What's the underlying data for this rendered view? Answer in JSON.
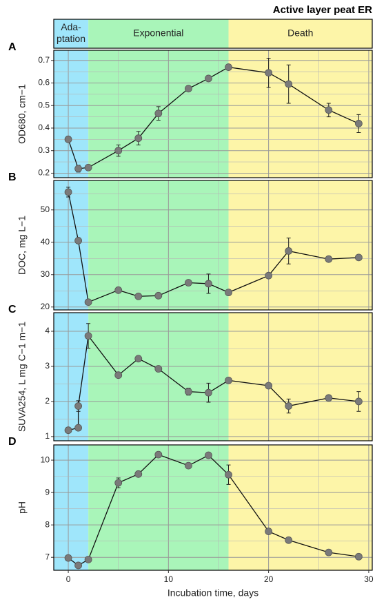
{
  "title": "Active layer peat ER",
  "x_axis": {
    "label": "Incubation time, days",
    "xlim": [
      -1.45,
      30.35
    ],
    "xticks": [
      0,
      10,
      20,
      30
    ],
    "xminor": [
      5,
      15,
      25
    ]
  },
  "phases": [
    {
      "lines": [
        "Ada-",
        "ptation"
      ],
      "end": 2,
      "color": "#9fe6fb"
    },
    {
      "lines": [
        "Exponential"
      ],
      "end": 16,
      "color": "#a9f5b9"
    },
    {
      "lines": [
        "Death"
      ],
      "end": 30.35,
      "color": "#fdf5a8"
    }
  ],
  "chart_data": [
    {
      "type": "line",
      "panel": "A",
      "y_label": "OD680, cm−1",
      "x": [
        0,
        1,
        2,
        5,
        7,
        9,
        12,
        14,
        16,
        20,
        22,
        26,
        29
      ],
      "values": [
        0.35,
        0.22,
        0.225,
        0.3,
        0.355,
        0.465,
        0.575,
        0.62,
        0.67,
        0.645,
        0.595,
        0.48,
        0.42
      ],
      "errors": [
        0.005,
        0.015,
        0.01,
        0.025,
        0.03,
        0.03,
        0.01,
        0.01,
        0.005,
        0.065,
        0.085,
        0.03,
        0.04
      ],
      "ylim": [
        0.18,
        0.745
      ],
      "yticks": [
        0.2,
        0.3,
        0.4,
        0.5,
        0.6,
        0.7
      ],
      "yminor": [
        0.25,
        0.35,
        0.45,
        0.55,
        0.65
      ],
      "grid": true
    },
    {
      "type": "line",
      "panel": "B",
      "y_label": "DOC, mg L−1",
      "x": [
        0,
        1,
        2,
        5,
        7,
        9,
        12,
        14,
        16,
        20,
        22,
        26,
        29
      ],
      "values": [
        55.5,
        40.5,
        21.5,
        25.2,
        23.3,
        23.5,
        27.5,
        27.2,
        24.5,
        29.7,
        37.3,
        34.8,
        35.3
      ],
      "errors": [
        1.5,
        0.5,
        0.5,
        0.5,
        0.3,
        0.3,
        0.8,
        3,
        0.5,
        0.8,
        4,
        0.5,
        0.5
      ],
      "ylim": [
        19.1,
        59.1
      ],
      "yticks": [
        20,
        30,
        40,
        50
      ],
      "yminor": [
        25,
        35,
        45,
        55
      ],
      "grid": true
    },
    {
      "type": "line",
      "panel": "C",
      "y_label": "SUVA254, L mg C−1 m−1",
      "x": [
        0,
        1,
        1,
        2,
        5,
        7,
        9,
        12,
        14,
        16,
        20,
        22,
        26,
        29
      ],
      "values": [
        1.18,
        1.25,
        1.87,
        3.87,
        2.75,
        3.22,
        2.93,
        2.28,
        2.25,
        2.6,
        2.45,
        1.87,
        2.1,
        2.0
      ],
      "errors": [
        0.02,
        0.02,
        0.15,
        0.35,
        0.03,
        0.05,
        0.05,
        0.1,
        0.27,
        0.05,
        0.05,
        0.2,
        0.05,
        0.28
      ],
      "ylim": [
        0.88,
        4.53
      ],
      "yticks": [
        1,
        2,
        3,
        4
      ],
      "yminor": [
        1.5,
        2.5,
        3.5
      ],
      "grid": true
    },
    {
      "type": "line",
      "panel": "D",
      "y_label": "pH",
      "x": [
        0,
        1,
        2,
        5,
        7,
        9,
        12,
        14,
        16,
        20,
        22,
        26,
        29
      ],
      "values": [
        6.98,
        6.75,
        6.93,
        9.3,
        9.57,
        10.17,
        9.83,
        10.15,
        9.55,
        7.8,
        7.53,
        7.15,
        7.02
      ],
      "errors": [
        0.05,
        0.05,
        0.05,
        0.15,
        0.05,
        0.05,
        0.05,
        0.05,
        0.3,
        0.05,
        0.05,
        0.05,
        0.05
      ],
      "ylim": [
        6.6,
        10.47
      ],
      "yticks": [
        7,
        8,
        9,
        10
      ],
      "yminor": [
        7.5,
        8.5,
        9.5
      ],
      "grid": true
    }
  ]
}
